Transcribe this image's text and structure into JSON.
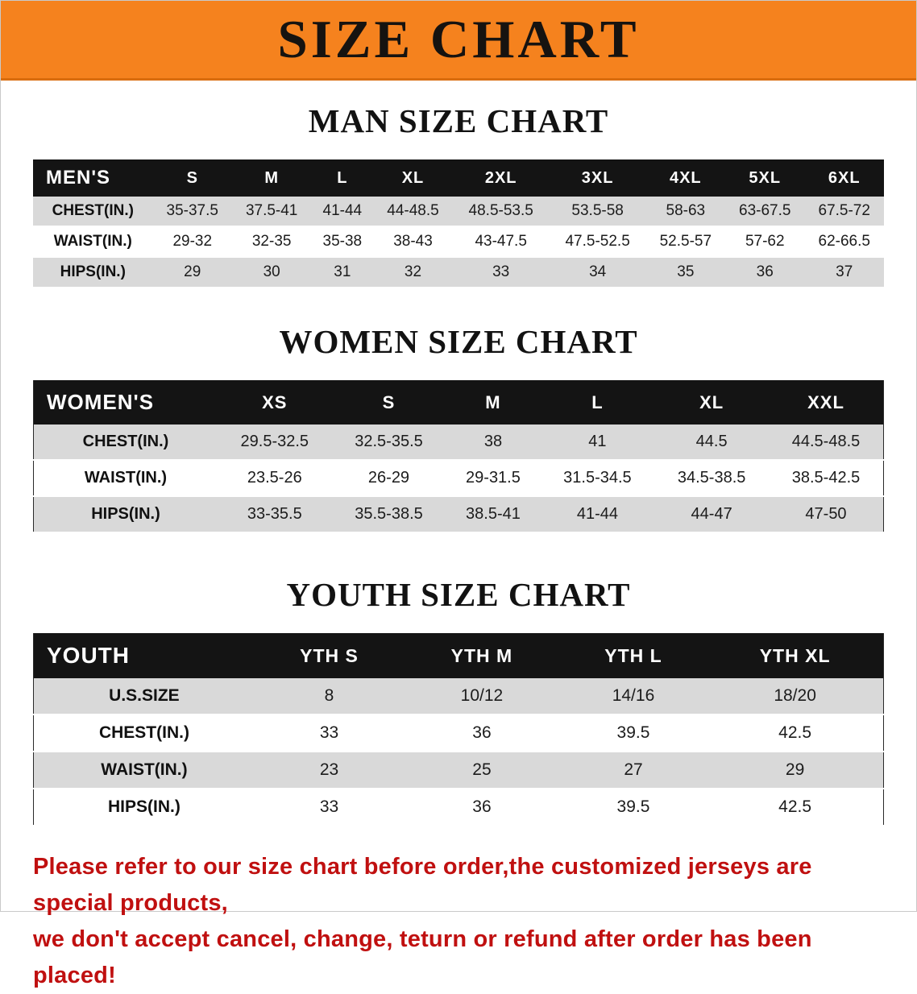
{
  "banner": {
    "title": "SIZE CHART",
    "bg_color": "#f5821e"
  },
  "sections": [
    {
      "heading": "MAN SIZE CHART",
      "table": {
        "header": [
          "MEN'S",
          "S",
          "M",
          "L",
          "XL",
          "2XL",
          "3XL",
          "4XL",
          "5XL",
          "6XL"
        ],
        "rows": [
          {
            "label": "CHEST(IN.)",
            "values": [
              "35-37.5",
              "37.5-41",
              "41-44",
              "44-48.5",
              "48.5-53.5",
              "53.5-58",
              "58-63",
              "63-67.5",
              "67.5-72"
            ]
          },
          {
            "label": "WAIST(IN.)",
            "values": [
              "29-32",
              "32-35",
              "35-38",
              "38-43",
              "43-47.5",
              "47.5-52.5",
              "52.5-57",
              "57-62",
              "62-66.5"
            ]
          },
          {
            "label": "HIPS(IN.)",
            "values": [
              "29",
              "30",
              "31",
              "32",
              "33",
              "34",
              "35",
              "36",
              "37"
            ]
          }
        ]
      }
    },
    {
      "heading": "WOMEN SIZE CHART",
      "table": {
        "header": [
          "WOMEN'S",
          "XS",
          "S",
          "M",
          "L",
          "XL",
          "XXL"
        ],
        "rows": [
          {
            "label": "CHEST(IN.)",
            "values": [
              "29.5-32.5",
              "32.5-35.5",
              "38",
              "41",
              "44.5",
              "44.5-48.5"
            ]
          },
          {
            "label": "WAIST(IN.)",
            "values": [
              "23.5-26",
              "26-29",
              "29-31.5",
              "31.5-34.5",
              "34.5-38.5",
              "38.5-42.5"
            ]
          },
          {
            "label": "HIPS(IN.)",
            "values": [
              "33-35.5",
              "35.5-38.5",
              "38.5-41",
              "41-44",
              "44-47",
              "47-50"
            ]
          }
        ]
      }
    },
    {
      "heading": "YOUTH SIZE CHART",
      "table": {
        "header": [
          "YOUTH",
          "YTH S",
          "YTH M",
          "YTH L",
          "YTH XL"
        ],
        "rows": [
          {
            "label": "U.S.SIZE",
            "values": [
              "8",
              "10/12",
              "14/16",
              "18/20"
            ]
          },
          {
            "label": "CHEST(IN.)",
            "values": [
              "33",
              "36",
              "39.5",
              "42.5"
            ]
          },
          {
            "label": "WAIST(IN.)",
            "values": [
              "23",
              "25",
              "27",
              "29"
            ]
          },
          {
            "label": "HIPS(IN.)",
            "values": [
              "33",
              "36",
              "39.5",
              "42.5"
            ]
          }
        ]
      }
    }
  ],
  "footer_note": {
    "lines": [
      "Please refer to our size chart before order,the customized jerseys are special products,",
      "we don't accept cancel, change, teturn or refund after order has been placed!"
    ],
    "color": "#c01010"
  }
}
